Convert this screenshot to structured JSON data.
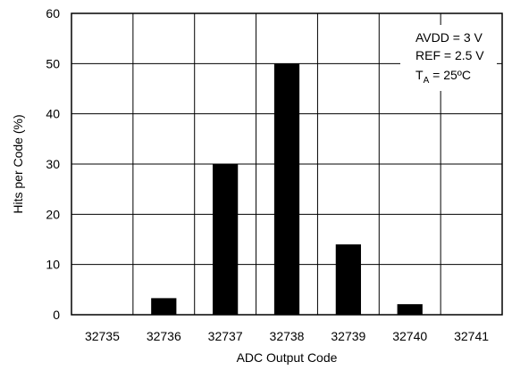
{
  "chart_data": {
    "type": "bar",
    "categories": [
      "32735",
      "32736",
      "32737",
      "32738",
      "32739",
      "32740",
      "32741"
    ],
    "values": [
      0,
      3.3,
      30,
      50,
      14,
      2.1,
      0
    ],
    "xlabel": "ADC Output Code",
    "ylabel": "Hits per Code (%)",
    "ylim": [
      0,
      60
    ],
    "yticks": [
      0,
      10,
      20,
      30,
      40,
      50,
      60
    ],
    "grid": true,
    "bar_color": "#000000",
    "annotation": {
      "line1": "AVDD = 3 V",
      "line2": "REF = 2.5 V",
      "line3_main": "T",
      "line3_sub": "A",
      "line3_rest": " = 25ºC"
    }
  }
}
